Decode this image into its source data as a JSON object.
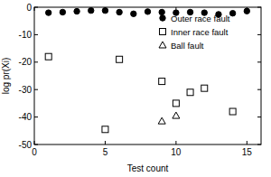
{
  "chart_data": {
    "type": "scatter",
    "x_label": "Test count",
    "y_label": "log pr(Xi)",
    "xlim": [
      0,
      16
    ],
    "xticks": [
      0,
      5,
      10,
      15
    ],
    "ylim": [
      -50,
      0
    ],
    "yticks": [
      0,
      -10,
      -20,
      -30,
      -40,
      -50
    ],
    "legend": "upper right",
    "series": [
      {
        "name": "Outer race fault",
        "color": "#000000",
        "marker": "filled-circle",
        "x": [
          1,
          2,
          3,
          4,
          5,
          6,
          7,
          8,
          9,
          10,
          11,
          12,
          13,
          14,
          15
        ],
        "values": [
          -2,
          -1.8,
          -1.5,
          -1.2,
          -1.2,
          -1.8,
          -2.4,
          -1.6,
          -1.8,
          -2,
          -1.8,
          -2,
          -2.6,
          -2.2,
          -1.4
        ]
      },
      {
        "name": "Inner race fault",
        "color": "#000000",
        "marker": "open-square",
        "x": [
          1,
          5,
          6,
          9,
          10,
          11,
          12,
          14
        ],
        "values": [
          -18,
          -44.5,
          -19,
          -27,
          -35,
          -31,
          -29.5,
          -38
        ]
      },
      {
        "name": "Ball fault",
        "color": "#000000",
        "marker": "open-triangle",
        "x": [
          9,
          10
        ],
        "values": [
          -41.5,
          -39.5
        ]
      }
    ]
  }
}
